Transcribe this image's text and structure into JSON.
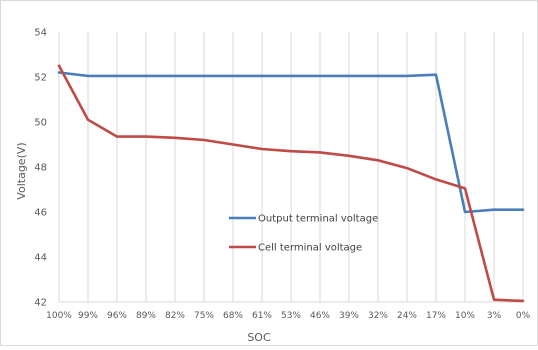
{
  "chart_data": {
    "type": "line",
    "title": "",
    "xlabel": "SOC",
    "ylabel": "Voltage(V)",
    "ylim": [
      42,
      54
    ],
    "yticks": [
      42,
      44,
      46,
      48,
      50,
      52,
      54
    ],
    "grid": "vertical",
    "legend": "center-right",
    "categories": [
      "100%",
      "99%",
      "96%",
      "89%",
      "82%",
      "75%",
      "68%",
      "61%",
      "53%",
      "46%",
      "39%",
      "32%",
      "24%",
      "17%",
      "10%",
      "3%",
      "0%"
    ],
    "series": [
      {
        "name": "Output terminal voltage",
        "color": "#4a7ebb",
        "values": [
          52.2,
          52.05,
          52.05,
          52.05,
          52.05,
          52.05,
          52.05,
          52.05,
          52.05,
          52.05,
          52.05,
          52.05,
          52.05,
          52.1,
          46.0,
          46.1,
          46.1
        ]
      },
      {
        "name": "Cell terminal voltage",
        "color": "#be4b48",
        "values": [
          52.5,
          50.1,
          49.35,
          49.35,
          49.3,
          49.2,
          49.0,
          48.8,
          48.7,
          48.65,
          48.5,
          48.3,
          47.95,
          47.45,
          47.05,
          42.1,
          42.05
        ]
      }
    ]
  }
}
